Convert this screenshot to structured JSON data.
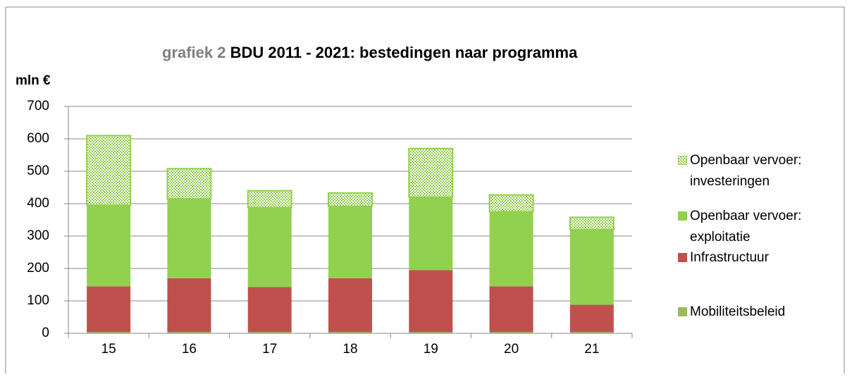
{
  "chart_data": {
    "type": "stacked_bar",
    "title_prefix": "grafiek 2",
    "title": "BDU 2011 - 2021: bestedingen naar programma",
    "ylabel": "mln €",
    "categories": [
      "15",
      "16",
      "17",
      "18",
      "19",
      "20",
      "21"
    ],
    "series": [
      {
        "name": "Mobiliteitsbeleid",
        "color": "#9bbb59",
        "values": [
          4,
          4,
          4,
          4,
          4,
          4,
          4
        ]
      },
      {
        "name": "Infrastructuur",
        "color": "#c0504d",
        "values": [
          141,
          166,
          139,
          166,
          191,
          141,
          84
        ]
      },
      {
        "name": "Openbaar vervoer: exploitatie",
        "color": "#92d050",
        "values": [
          250,
          245,
          245,
          222,
          225,
          230,
          232
        ]
      },
      {
        "name": "Openbaar vervoer: investeringen",
        "color": "#92d050",
        "pattern": "dotted",
        "values": [
          215,
          93,
          52,
          41,
          150,
          52,
          38
        ]
      }
    ],
    "ylim": [
      0,
      700
    ],
    "yticks": [
      0,
      100,
      200,
      300,
      400,
      500,
      600,
      700
    ],
    "grid": true
  }
}
